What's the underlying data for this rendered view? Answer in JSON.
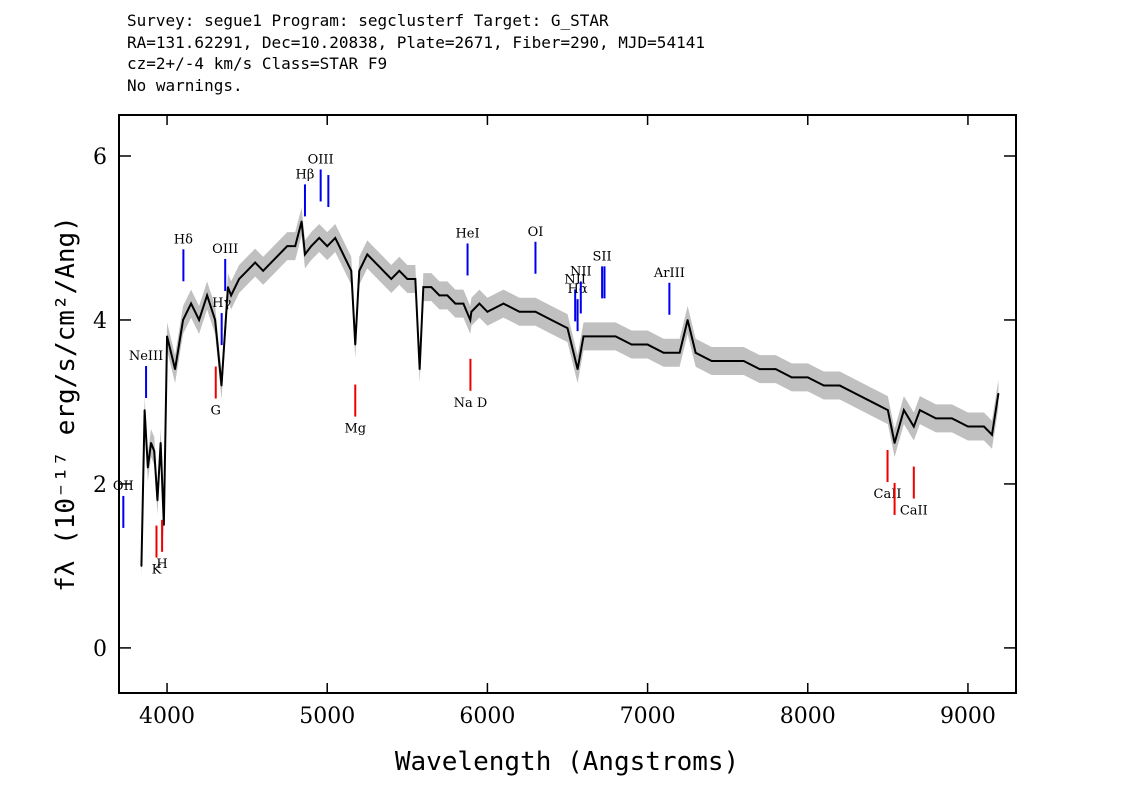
{
  "header": {
    "line1": "Survey: segue1 Program: segclusterf Target: G_STAR",
    "line2": "RA=131.62291, Dec=10.20838, Plate=2671, Fiber=290, MJD=54141",
    "line3": "cz=2+/-4 km/s Class=STAR F9",
    "line4": "No warnings."
  },
  "chart_data": {
    "type": "line",
    "xlabel": "Wavelength (Angstroms)",
    "ylabel": "fλ (10⁻¹⁷ erg/s/cm²/Ang)",
    "xlim": [
      3700,
      9300
    ],
    "ylim": [
      -0.55,
      6.5
    ],
    "x_ticks": [
      4000,
      5000,
      6000,
      7000,
      8000,
      9000
    ],
    "y_ticks": [
      0,
      2,
      4,
      6
    ],
    "colors": {
      "flux": "#000000",
      "error_band": "#c0c0c0",
      "emission": "#0000ee",
      "absorption": "#ee0000"
    },
    "series": [
      {
        "x": [
          3840,
          3860,
          3880,
          3900,
          3920,
          3940,
          3960,
          3980,
          4000,
          4050,
          4100,
          4150,
          4200,
          4250,
          4300,
          4340,
          4380,
          4400,
          4450,
          4500,
          4550,
          4600,
          4650,
          4700,
          4750,
          4800,
          4840,
          4861,
          4900,
          4950,
          5000,
          5050,
          5100,
          5150,
          5175,
          5200,
          5250,
          5300,
          5350,
          5400,
          5450,
          5500,
          5550,
          5577,
          5600,
          5650,
          5700,
          5750,
          5800,
          5850,
          5893,
          5900,
          5950,
          6000,
          6100,
          6200,
          6300,
          6400,
          6500,
          6563,
          6600,
          6700,
          6800,
          6900,
          7000,
          7100,
          7200,
          7250,
          7300,
          7400,
          7500,
          7600,
          7700,
          7800,
          7900,
          8000,
          8100,
          8200,
          8300,
          8400,
          8500,
          8542,
          8600,
          8662,
          8700,
          8800,
          8900,
          9000,
          9100,
          9150,
          9190
        ],
        "y": [
          1.0,
          2.9,
          2.2,
          2.5,
          2.4,
          1.8,
          2.5,
          1.5,
          3.8,
          3.4,
          4.0,
          4.2,
          4.0,
          4.3,
          4.0,
          3.2,
          4.4,
          4.3,
          4.5,
          4.6,
          4.7,
          4.6,
          4.7,
          4.8,
          4.9,
          4.9,
          5.2,
          4.8,
          4.9,
          5.0,
          4.9,
          5.0,
          4.8,
          4.6,
          3.7,
          4.6,
          4.8,
          4.7,
          4.6,
          4.5,
          4.6,
          4.5,
          4.5,
          3.4,
          4.4,
          4.4,
          4.3,
          4.3,
          4.2,
          4.2,
          4.0,
          4.1,
          4.2,
          4.1,
          4.2,
          4.1,
          4.1,
          4.0,
          3.9,
          3.4,
          3.8,
          3.8,
          3.8,
          3.7,
          3.7,
          3.6,
          3.6,
          4.0,
          3.6,
          3.5,
          3.5,
          3.5,
          3.4,
          3.4,
          3.3,
          3.3,
          3.2,
          3.2,
          3.1,
          3.0,
          2.9,
          2.5,
          2.9,
          2.7,
          2.9,
          2.8,
          2.8,
          2.7,
          2.7,
          2.6,
          3.1
        ]
      }
    ],
    "annotations": [
      {
        "label": "OII",
        "wavelength": 3727,
        "kind": "emission"
      },
      {
        "label": "NeIII",
        "wavelength": 3869,
        "kind": "emission"
      },
      {
        "label": "K",
        "wavelength": 3934,
        "kind": "absorption"
      },
      {
        "label": "H",
        "wavelength": 3969,
        "kind": "absorption"
      },
      {
        "label": "Hδ",
        "wavelength": 4102,
        "kind": "emission"
      },
      {
        "label": "G",
        "wavelength": 4304,
        "kind": "absorption"
      },
      {
        "label": "Hγ",
        "wavelength": 4341,
        "kind": "emission"
      },
      {
        "label": "OIII",
        "wavelength": 4363,
        "kind": "emission"
      },
      {
        "label": "Hβ",
        "wavelength": 4861,
        "kind": "emission"
      },
      {
        "label": "OIII",
        "wavelength": 4959,
        "kind": "emission"
      },
      {
        "label": "OIII",
        "wavelength": 5007,
        "kind": "emission"
      },
      {
        "label": "Mg",
        "wavelength": 5175,
        "kind": "absorption"
      },
      {
        "label": "HeI",
        "wavelength": 5876,
        "kind": "emission"
      },
      {
        "label": "Na D",
        "wavelength": 5894,
        "kind": "absorption"
      },
      {
        "label": "OI",
        "wavelength": 6300,
        "kind": "emission"
      },
      {
        "label": "NII",
        "wavelength": 6548,
        "kind": "emission"
      },
      {
        "label": "Hα",
        "wavelength": 6563,
        "kind": "emission"
      },
      {
        "label": "NII",
        "wavelength": 6583,
        "kind": "emission"
      },
      {
        "label": "SII",
        "wavelength": 6716,
        "kind": "emission"
      },
      {
        "label": "SII",
        "wavelength": 6731,
        "kind": "emission"
      },
      {
        "label": "ArIII",
        "wavelength": 7136,
        "kind": "emission"
      },
      {
        "label": "CaII",
        "wavelength": 8498,
        "kind": "absorption"
      },
      {
        "label": "CaII",
        "wavelength": 8542,
        "kind": "absorption"
      },
      {
        "label": "CaII",
        "wavelength": 8662,
        "kind": "absorption"
      }
    ]
  }
}
